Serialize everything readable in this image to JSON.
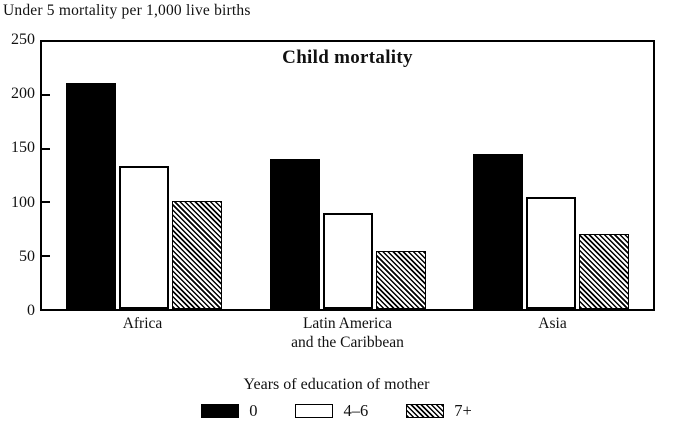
{
  "header": {
    "axis_top_title": "Under 5 mortality per 1,000 live births"
  },
  "chart_data": {
    "type": "bar",
    "title": "Child mortality",
    "ylabel": "Under 5 mortality per 1,000 live births",
    "xlabel": "",
    "categories": [
      "Africa",
      "Latin America\nand the Caribbean",
      "Asia"
    ],
    "series": [
      {
        "name": "0",
        "fill": "black",
        "values": [
          212,
          140,
          145
        ]
      },
      {
        "name": "4–6",
        "fill": "white",
        "values": [
          134,
          90,
          105
        ]
      },
      {
        "name": "7+",
        "fill": "hatch",
        "values": [
          101,
          54,
          70
        ]
      }
    ],
    "ylim": [
      0,
      250
    ],
    "yticks": [
      0,
      50,
      100,
      150,
      200,
      250
    ],
    "grid": false,
    "legend_title": "Years of education of mother",
    "legend_position": "bottom"
  },
  "colors": {
    "bar_solid": "#000000",
    "bar_outline_fill": "#ffffff",
    "frame": "#000000",
    "background": "#ffffff",
    "text": "#111111"
  }
}
